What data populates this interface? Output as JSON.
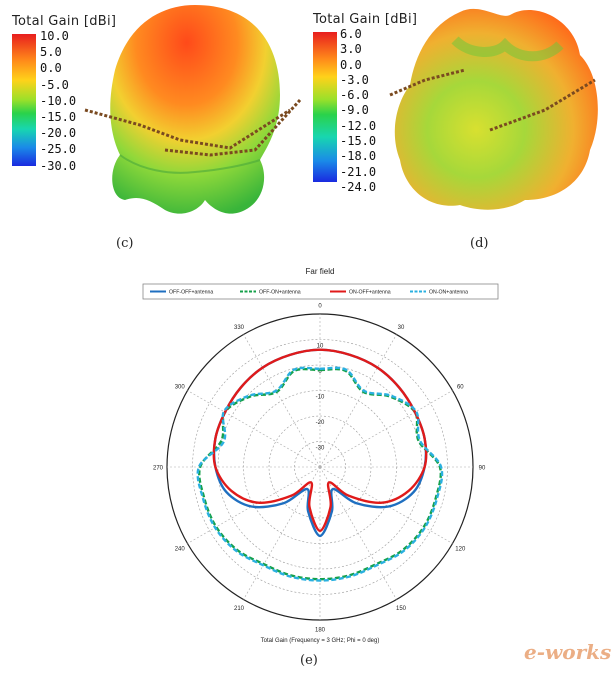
{
  "panel_c": {
    "label": "(c)",
    "colorbar_title": "Total Gain [dBi]",
    "ticks": [
      "10.0",
      "5.0",
      "0.0",
      "-5.0",
      "-10.0",
      "-15.0",
      "-20.0",
      "-25.0",
      "-30.0"
    ]
  },
  "panel_d": {
    "label": "(d)",
    "colorbar_title": "Total Gain [dBi]",
    "ticks": [
      "6.0",
      "3.0",
      "0.0",
      "-3.0",
      "-6.0",
      "-9.0",
      "-12.0",
      "-15.0",
      "-18.0",
      "-21.0",
      "-24.0"
    ]
  },
  "panel_e": {
    "label": "(e)"
  },
  "colors": {
    "blue": "#1f6fc0",
    "green": "#14a04a",
    "red": "#e01a1a",
    "cyan": "#2ab0e0"
  },
  "watermark": "e-works",
  "chart_data": {
    "type": "polar",
    "title": "Far field",
    "xlabel": "Total Gain (Frequency = 3 GHz; Phi = 0 deg)",
    "angle_ticks": [
      "0",
      "30",
      "60",
      "90",
      "120",
      "150",
      "180",
      "210",
      "240",
      "270",
      "300",
      "330"
    ],
    "radial_ticks": [
      "10",
      "0",
      "-10",
      "-20",
      "-30"
    ],
    "rlim": [
      -40,
      20
    ],
    "angles": [
      0,
      15,
      30,
      45,
      60,
      75,
      90,
      105,
      120,
      135,
      150,
      165,
      180,
      195,
      210,
      225,
      240,
      255,
      270,
      285,
      300,
      315,
      330,
      345
    ],
    "series": [
      {
        "name": "OFF-OFF+antenna",
        "color": "#1f6fc0",
        "dash": "solid",
        "values": [
          6,
          5.5,
          5,
          4,
          3,
          2.5,
          1,
          -2,
          -9,
          -20,
          -30,
          -22,
          -13,
          -22,
          -30,
          -20,
          -9,
          -2,
          1,
          2.5,
          3,
          4,
          5,
          5.5
        ]
      },
      {
        "name": "OFF-ON+antenna",
        "color": "#14a04a",
        "dash": "dashed",
        "values": [
          -2,
          -1,
          -6,
          -1,
          3,
          0,
          7,
          7,
          7,
          6,
          4,
          4,
          4,
          4,
          4,
          6,
          7,
          7,
          7,
          0,
          3,
          -1,
          -6,
          -1
        ]
      },
      {
        "name": "ON-OFF+antenna",
        "color": "#e01a1a",
        "dash": "solid",
        "values": [
          6,
          5.5,
          5,
          4,
          3,
          2.5,
          1,
          -4,
          -12,
          -24,
          -33,
          -24,
          -15,
          -24,
          -33,
          -24,
          -12,
          -4,
          1,
          2.5,
          3,
          4,
          5,
          5.5
        ]
      },
      {
        "name": "ON-ON+antenna",
        "color": "#2ab0e0",
        "dash": "dashed",
        "values": [
          -1.5,
          -0.5,
          -5.5,
          -0.5,
          3.5,
          0.5,
          7.5,
          7.5,
          7.5,
          6.5,
          4.5,
          4.5,
          4.5,
          4.5,
          4.5,
          6.5,
          7.5,
          7.5,
          7.5,
          -1,
          3.5,
          -0.5,
          -5.5,
          -0.5
        ]
      }
    ]
  }
}
